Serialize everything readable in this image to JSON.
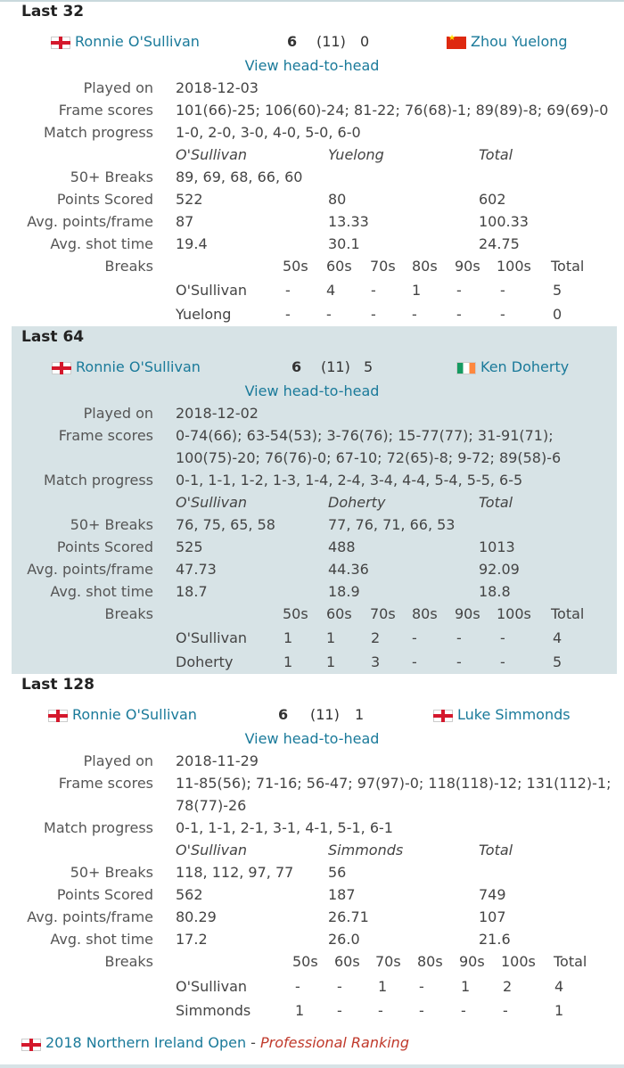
{
  "colors": {
    "link": "#1a7a9a",
    "shade": "#d7e3e6",
    "ranking": "#c0392b"
  },
  "break_headers": [
    "50s",
    "60s",
    "70s",
    "80s",
    "90s",
    "100s",
    "Total"
  ],
  "labels": {
    "played_on": "Played on",
    "frame_scores": "Frame scores",
    "match_progress": "Match progress",
    "breaks_50": "50+ Breaks",
    "points_scored": "Points Scored",
    "avg_points": "Avg. points/frame",
    "avg_shot": "Avg. shot time",
    "breaks": "Breaks",
    "total": "Total",
    "view_h2h": "View head-to-head"
  },
  "matches": [
    {
      "round": "Last 32",
      "player1": {
        "name": "Ronnie O'Sullivan",
        "flag": "england"
      },
      "player2": {
        "name": "Zhou Yuelong",
        "flag": "china"
      },
      "score1": "6",
      "best_of": "(11)",
      "score2": "0",
      "played_on": "2018-12-03",
      "frame_scores": [
        "101(66)-25; 106(60)-24; 81-22; 76(68)-1; 89(89)-8; 69(69)-0"
      ],
      "match_progress": "1-0, 2-0, 3-0, 4-0, 5-0, 6-0",
      "short1": "O'Sullivan",
      "short2": "Yuelong",
      "breaks50": {
        "p1": "89, 69, 68, 66, 60",
        "p2": ""
      },
      "points": {
        "p1": "522",
        "p2": "80",
        "total": "602"
      },
      "avg_points": {
        "p1": "87",
        "p2": "13.33",
        "total": "100.33"
      },
      "avg_shot": {
        "p1": "19.4",
        "p2": "30.1",
        "total": "24.75"
      },
      "breaks_table": [
        {
          "name": "O'Sullivan",
          "values": [
            "-",
            "4",
            "-",
            "1",
            "-",
            "-",
            "5"
          ]
        },
        {
          "name": "Yuelong",
          "values": [
            "-",
            "-",
            "-",
            "-",
            "-",
            "-",
            "0"
          ]
        }
      ]
    },
    {
      "round": "Last 64",
      "player1": {
        "name": "Ronnie O'Sullivan",
        "flag": "england"
      },
      "player2": {
        "name": "Ken Doherty",
        "flag": "ireland"
      },
      "score1": "6",
      "best_of": "(11)",
      "score2": "5",
      "played_on": "2018-12-02",
      "frame_scores": [
        "0-74(66); 63-54(53); 3-76(76); 15-77(77); 31-91(71);",
        "100(75)-20; 76(76)-0; 67-10; 72(65)-8; 9-72; 89(58)-6"
      ],
      "match_progress": "0-1, 1-1, 1-2, 1-3, 1-4, 2-4, 3-4, 4-4, 5-4, 5-5, 6-5",
      "short1": "O'Sullivan",
      "short2": "Doherty",
      "breaks50": {
        "p1": "76, 75, 65, 58",
        "p2": "77, 76, 71, 66, 53"
      },
      "points": {
        "p1": "525",
        "p2": "488",
        "total": "1013"
      },
      "avg_points": {
        "p1": "47.73",
        "p2": "44.36",
        "total": "92.09"
      },
      "avg_shot": {
        "p1": "18.7",
        "p2": "18.9",
        "total": "18.8"
      },
      "breaks_table": [
        {
          "name": "O'Sullivan",
          "values": [
            "1",
            "1",
            "2",
            "-",
            "-",
            "-",
            "4"
          ]
        },
        {
          "name": "Doherty",
          "values": [
            "1",
            "1",
            "3",
            "-",
            "-",
            "-",
            "5"
          ]
        }
      ]
    },
    {
      "round": "Last 128",
      "player1": {
        "name": "Ronnie O'Sullivan",
        "flag": "england"
      },
      "player2": {
        "name": "Luke Simmonds",
        "flag": "england"
      },
      "score1": "6",
      "best_of": "(11)",
      "score2": "1",
      "played_on": "2018-11-29",
      "frame_scores": [
        "11-85(56); 71-16; 56-47; 97(97)-0; 118(118)-12; 131(112)-1;",
        "78(77)-26"
      ],
      "match_progress": "0-1, 1-1, 2-1, 3-1, 4-1, 5-1, 6-1",
      "short1": "O'Sullivan",
      "short2": "Simmonds",
      "breaks50": {
        "p1": "118, 112, 97, 77",
        "p2": "56"
      },
      "points": {
        "p1": "562",
        "p2": "187",
        "total": "749"
      },
      "avg_points": {
        "p1": "80.29",
        "p2": "26.71",
        "total": "107"
      },
      "avg_shot": {
        "p1": "17.2",
        "p2": "26.0",
        "total": "21.6"
      },
      "breaks_table": [
        {
          "name": "O'Sullivan",
          "values": [
            "-",
            "-",
            "1",
            "-",
            "1",
            "2",
            "4"
          ]
        },
        {
          "name": "Simmonds",
          "values": [
            "1",
            "-",
            "-",
            "-",
            "-",
            "-",
            "1"
          ]
        }
      ]
    }
  ],
  "event": {
    "name": "2018 Northern Ireland Open",
    "separator": " - ",
    "type": "Professional Ranking",
    "flag": "northern-ireland"
  }
}
